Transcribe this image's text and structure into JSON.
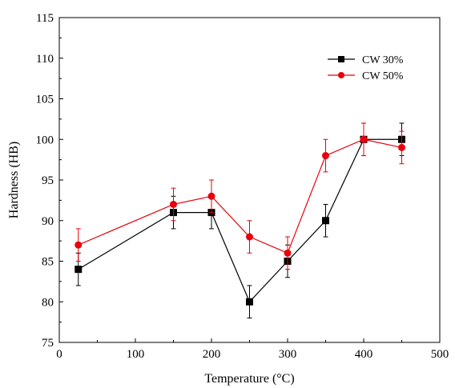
{
  "chart_data": {
    "type": "line",
    "xlabel": "Temperature (°C)",
    "ylabel": "Hardness (HB)",
    "xlim": [
      0,
      500
    ],
    "ylim": [
      75,
      115
    ],
    "xticks": [
      0,
      100,
      200,
      300,
      400,
      500
    ],
    "yticks": [
      75,
      80,
      85,
      90,
      95,
      100,
      105,
      110,
      115
    ],
    "grid": false,
    "legend_position": "top-right",
    "series": [
      {
        "name": "CW 30%",
        "color": "#000000",
        "marker": "square",
        "x": [
          25,
          150,
          200,
          250,
          300,
          350,
          400,
          450
        ],
        "y": [
          84,
          91,
          91,
          80,
          85,
          90,
          100,
          100
        ],
        "error": [
          2,
          2,
          2,
          2,
          2,
          2,
          2,
          2
        ]
      },
      {
        "name": "CW 50%",
        "color": "#e8000b",
        "marker": "circle",
        "x": [
          25,
          150,
          200,
          250,
          300,
          350,
          400,
          450
        ],
        "y": [
          87,
          92,
          93,
          88,
          86,
          98,
          100,
          99
        ],
        "error": [
          2,
          2,
          2,
          2,
          2,
          2,
          2,
          2
        ]
      }
    ]
  }
}
